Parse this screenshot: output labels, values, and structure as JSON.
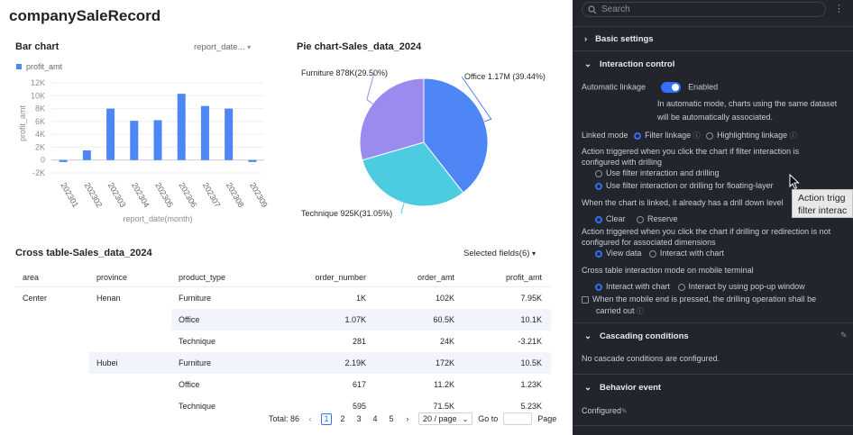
{
  "page_title": "companySaleRecord",
  "bar": {
    "title": "Bar chart",
    "dropdown": "report_date...",
    "legend": "profit_amt",
    "ylabel": "profit_amt",
    "xlabel": "report_date(month)",
    "y_ticks": [
      "12K",
      "10K",
      "8K",
      "6K",
      "4K",
      "2K",
      "0",
      "-2K"
    ]
  },
  "pie": {
    "title": "Pie chart-Sales_data_2024",
    "labels": {
      "office": "Office 1.17M (39.44%)",
      "technique": "Technique 925K(31.05%)",
      "furniture": "Furniture 878K(29.50%)"
    }
  },
  "chart_data": [
    {
      "type": "bar",
      "title": "Bar chart",
      "xlabel": "report_date(month)",
      "ylabel": "profit_amt",
      "ylim": [
        -2000,
        12000
      ],
      "categories": [
        "202301",
        "202302",
        "202303",
        "202304",
        "202305",
        "202306",
        "202307",
        "202308",
        "202309"
      ],
      "values": [
        -300,
        1500,
        8000,
        6100,
        6200,
        10300,
        8400,
        8000,
        -300
      ],
      "legend": [
        "profit_amt"
      ],
      "color": "#4e86f5"
    },
    {
      "type": "pie",
      "title": "Pie chart-Sales_data_2024",
      "slices": [
        {
          "name": "Office",
          "value": 1170000,
          "percent": 39.44,
          "color": "#4e86f5"
        },
        {
          "name": "Technique",
          "value": 925000,
          "percent": 31.05,
          "color": "#4dcbe0"
        },
        {
          "name": "Furniture",
          "value": 878000,
          "percent": 29.5,
          "color": "#9a8bef"
        }
      ]
    }
  ],
  "table": {
    "title": "Cross table-Sales_data_2024",
    "selected_fields": "Selected fields(6)",
    "columns": [
      "area",
      "province",
      "product_type",
      "order_number",
      "order_amt",
      "profit_amt"
    ],
    "rows": [
      {
        "area": "Center",
        "province": "Henan",
        "product_type": "Furniture",
        "order_number": "1K",
        "order_amt": "102K",
        "profit_amt": "7.95K"
      },
      {
        "area": "",
        "province": "",
        "product_type": "Office",
        "order_number": "1.07K",
        "order_amt": "60.5K",
        "profit_amt": "10.1K"
      },
      {
        "area": "",
        "province": "",
        "product_type": "Technique",
        "order_number": "281",
        "order_amt": "24K",
        "profit_amt": "-3.21K"
      },
      {
        "area": "",
        "province": "Hubei",
        "product_type": "Furniture",
        "order_number": "2.19K",
        "order_amt": "172K",
        "profit_amt": "10.5K"
      },
      {
        "area": "",
        "province": "",
        "product_type": "Office",
        "order_number": "617",
        "order_amt": "11.2K",
        "profit_amt": "1.23K"
      },
      {
        "area": "",
        "province": "",
        "product_type": "Technique",
        "order_number": "595",
        "order_amt": "71.5K",
        "profit_amt": "5.23K"
      }
    ]
  },
  "pagination": {
    "total": "Total: 86",
    "pages": [
      "1",
      "2",
      "3",
      "4",
      "5"
    ],
    "page_size": "20 / page",
    "goto": "Go to",
    "page": "Page"
  },
  "panel": {
    "search_placeholder": "Search",
    "basic_settings": "Basic settings",
    "interaction_control": "Interaction control",
    "automatic_linkage": "Automatic linkage",
    "enabled": "Enabled",
    "auto_desc_1": "In automatic mode, charts using the same dataset",
    "auto_desc_2": "will be automatically associated.",
    "linked_mode": "Linked mode",
    "filter_linkage": "Filter linkage",
    "highlighting_linkage": "Highlighting linkage",
    "action1_1": "Action triggered when you click the chart if filter interaction is",
    "action1_2": "configured with drilling",
    "use_filter_drilling": "Use filter interaction and drilling",
    "use_filter_or_drilling": "Use filter interaction or drilling for floating-layer",
    "drill_level": "When the chart is linked, it already has a drill down level",
    "clear": "Clear",
    "reserve": "Reserve",
    "action2_1": "Action triggered when you click the chart if drilling or redirection is not",
    "action2_2": "configured for associated dimensions",
    "view_data": "View data",
    "interact_with_chart": "Interact with chart",
    "mobile_mode": "Cross table interaction mode on mobile terminal",
    "interact_with_chart2": "Interact with chart",
    "interact_popup": "Interact by using pop-up window",
    "mobile_press_1": "When the mobile end is pressed, the drilling operation shall be",
    "mobile_press_2": "carried out",
    "cascading": "Cascading conditions",
    "no_cascade": "No cascade conditions are configured.",
    "behavior_event": "Behavior event",
    "configured": "Configured"
  },
  "tooltip": {
    "line1": "Action trigg",
    "line2": "filter interac"
  }
}
